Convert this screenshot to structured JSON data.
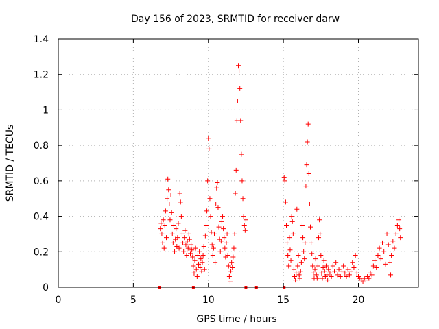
{
  "chart_data": {
    "type": "scatter",
    "title": "Day 156 of 2023, SRMTID for receiver darw",
    "xlabel": "GPS time / hours",
    "ylabel": "SRMTID / TECUs",
    "xlim": [
      0,
      24
    ],
    "ylim": [
      0,
      1.4
    ],
    "xticks": [
      0,
      5,
      10,
      15,
      20
    ],
    "yticks": [
      0,
      0.2,
      0.4,
      0.6,
      0.8,
      1,
      1.2,
      1.4
    ],
    "ytick_labels": [
      "0",
      "0.2",
      "0.4",
      "0.6",
      "0.8",
      "1",
      "1.2",
      "1.4"
    ],
    "grid": true,
    "marker": "+",
    "color": "#ff0000",
    "series": [
      {
        "name": "SRMTID",
        "points": [
          [
            6.8,
            0.33
          ],
          [
            6.85,
            0.36
          ],
          [
            6.9,
            0.3
          ],
          [
            6.95,
            0.25
          ],
          [
            7.0,
            0.38
          ],
          [
            7.05,
            0.22
          ],
          [
            7.1,
            0.35
          ],
          [
            7.15,
            0.43
          ],
          [
            7.2,
            0.28
          ],
          [
            7.25,
            0.5
          ],
          [
            7.3,
            0.61
          ],
          [
            7.35,
            0.55
          ],
          [
            7.4,
            0.47
          ],
          [
            7.45,
            0.38
          ],
          [
            7.5,
            0.52
          ],
          [
            7.55,
            0.42
          ],
          [
            7.6,
            0.3
          ],
          [
            7.65,
            0.25
          ],
          [
            7.7,
            0.35
          ],
          [
            7.75,
            0.2
          ],
          [
            7.8,
            0.27
          ],
          [
            7.85,
            0.33
          ],
          [
            7.9,
            0.23
          ],
          [
            7.95,
            0.28
          ],
          [
            8.0,
            0.36
          ],
          [
            8.05,
            0.22
          ],
          [
            8.1,
            0.53
          ],
          [
            8.15,
            0.48
          ],
          [
            8.2,
            0.4
          ],
          [
            8.25,
            0.3
          ],
          [
            8.3,
            0.25
          ],
          [
            8.35,
            0.2
          ],
          [
            8.4,
            0.28
          ],
          [
            8.45,
            0.32
          ],
          [
            8.5,
            0.24
          ],
          [
            8.55,
            0.18
          ],
          [
            8.6,
            0.26
          ],
          [
            8.65,
            0.22
          ],
          [
            8.7,
            0.3
          ],
          [
            8.75,
            0.27
          ],
          [
            8.8,
            0.19
          ],
          [
            8.85,
            0.24
          ],
          [
            8.9,
            0.21
          ],
          [
            8.95,
            0.17
          ],
          [
            9.0,
            0.12
          ],
          [
            9.05,
            0.08
          ],
          [
            9.1,
            0.15
          ],
          [
            9.15,
            0.22
          ],
          [
            9.2,
            0.1
          ],
          [
            9.25,
            0.06
          ],
          [
            9.3,
            0.18
          ],
          [
            9.35,
            0.13
          ],
          [
            9.4,
            0.2
          ],
          [
            9.45,
            0.11
          ],
          [
            9.5,
            0.16
          ],
          [
            9.55,
            0.09
          ],
          [
            9.6,
            0.14
          ],
          [
            9.65,
            0.18
          ],
          [
            9.7,
            0.23
          ],
          [
            9.75,
            0.1
          ],
          [
            9.8,
            0.29
          ],
          [
            9.85,
            0.35
          ],
          [
            9.9,
            0.43
          ],
          [
            9.95,
            0.6
          ],
          [
            10.0,
            0.84
          ],
          [
            10.05,
            0.78
          ],
          [
            10.1,
            0.5
          ],
          [
            10.15,
            0.4
          ],
          [
            10.2,
            0.31
          ],
          [
            10.25,
            0.24
          ],
          [
            10.3,
            0.18
          ],
          [
            10.35,
            0.22
          ],
          [
            10.4,
            0.3
          ],
          [
            10.45,
            0.14
          ],
          [
            10.5,
            0.47
          ],
          [
            10.55,
            0.56
          ],
          [
            10.6,
            0.59
          ],
          [
            10.65,
            0.45
          ],
          [
            10.7,
            0.34
          ],
          [
            10.75,
            0.27
          ],
          [
            10.8,
            0.2
          ],
          [
            10.85,
            0.26
          ],
          [
            10.9,
            0.37
          ],
          [
            10.95,
            0.4
          ],
          [
            11.0,
            0.33
          ],
          [
            11.05,
            0.28
          ],
          [
            11.1,
            0.22
          ],
          [
            11.15,
            0.17
          ],
          [
            11.2,
            0.25
          ],
          [
            11.25,
            0.3
          ],
          [
            11.3,
            0.18
          ],
          [
            11.35,
            0.12
          ],
          [
            11.4,
            0.06
          ],
          [
            11.45,
            0.03
          ],
          [
            11.5,
            0.09
          ],
          [
            11.55,
            0.14
          ],
          [
            11.6,
            0.11
          ],
          [
            11.65,
            0.17
          ],
          [
            11.7,
            0.22
          ],
          [
            11.75,
            0.3
          ],
          [
            11.8,
            0.53
          ],
          [
            11.85,
            0.66
          ],
          [
            11.9,
            0.94
          ],
          [
            11.95,
            1.05
          ],
          [
            12.0,
            1.25
          ],
          [
            12.05,
            1.22
          ],
          [
            12.1,
            1.12
          ],
          [
            12.15,
            0.94
          ],
          [
            12.2,
            0.75
          ],
          [
            12.25,
            0.6
          ],
          [
            12.3,
            0.5
          ],
          [
            12.35,
            0.4
          ],
          [
            12.4,
            0.35
          ],
          [
            12.45,
            0.32
          ],
          [
            12.5,
            0.38
          ],
          [
            15.05,
            0.62
          ],
          [
            15.1,
            0.6
          ],
          [
            15.15,
            0.48
          ],
          [
            15.2,
            0.35
          ],
          [
            15.25,
            0.25
          ],
          [
            15.3,
            0.18
          ],
          [
            15.35,
            0.12
          ],
          [
            15.4,
            0.28
          ],
          [
            15.45,
            0.21
          ],
          [
            15.5,
            0.15
          ],
          [
            15.55,
            0.4
          ],
          [
            15.6,
            0.37
          ],
          [
            15.65,
            0.3
          ],
          [
            15.7,
            0.1
          ],
          [
            15.75,
            0.06
          ],
          [
            15.8,
            0.04
          ],
          [
            15.85,
            0.08
          ],
          [
            15.9,
            0.44
          ],
          [
            15.95,
            0.12
          ],
          [
            16.0,
            0.18
          ],
          [
            16.05,
            0.07
          ],
          [
            16.1,
            0.05
          ],
          [
            16.15,
            0.09
          ],
          [
            16.2,
            0.14
          ],
          [
            16.25,
            0.35
          ],
          [
            16.3,
            0.28
          ],
          [
            16.35,
            0.2
          ],
          [
            16.4,
            0.16
          ],
          [
            16.45,
            0.25
          ],
          [
            16.5,
            0.57
          ],
          [
            16.55,
            0.69
          ],
          [
            16.6,
            0.82
          ],
          [
            16.65,
            0.92
          ],
          [
            16.7,
            0.64
          ],
          [
            16.75,
            0.47
          ],
          [
            16.8,
            0.34
          ],
          [
            16.85,
            0.25
          ],
          [
            16.9,
            0.19
          ],
          [
            16.95,
            0.12
          ],
          [
            17.0,
            0.08
          ],
          [
            17.05,
            0.05
          ],
          [
            17.1,
            0.1
          ],
          [
            17.15,
            0.16
          ],
          [
            17.2,
            0.07
          ],
          [
            17.25,
            0.05
          ],
          [
            17.3,
            0.12
          ],
          [
            17.35,
            0.28
          ],
          [
            17.4,
            0.38
          ],
          [
            17.45,
            0.3
          ],
          [
            17.5,
            0.18
          ],
          [
            17.55,
            0.08
          ],
          [
            17.6,
            0.05
          ],
          [
            17.65,
            0.11
          ],
          [
            17.7,
            0.15
          ],
          [
            17.75,
            0.09
          ],
          [
            17.8,
            0.06
          ],
          [
            17.85,
            0.12
          ],
          [
            17.9,
            0.07
          ],
          [
            17.95,
            0.04
          ],
          [
            18.0,
            0.1
          ],
          [
            18.1,
            0.08
          ],
          [
            18.2,
            0.06
          ],
          [
            18.3,
            0.12
          ],
          [
            18.4,
            0.09
          ],
          [
            18.5,
            0.14
          ],
          [
            18.6,
            0.07
          ],
          [
            18.7,
            0.1
          ],
          [
            18.8,
            0.06
          ],
          [
            18.9,
            0.09
          ],
          [
            19.0,
            0.12
          ],
          [
            19.1,
            0.08
          ],
          [
            19.2,
            0.06
          ],
          [
            19.3,
            0.1
          ],
          [
            19.4,
            0.07
          ],
          [
            19.5,
            0.09
          ],
          [
            19.6,
            0.14
          ],
          [
            19.7,
            0.11
          ],
          [
            19.8,
            0.18
          ],
          [
            19.9,
            0.08
          ],
          [
            20.0,
            0.06
          ],
          [
            20.1,
            0.05
          ],
          [
            20.2,
            0.04
          ],
          [
            20.3,
            0.03
          ],
          [
            20.4,
            0.05
          ],
          [
            20.5,
            0.04
          ],
          [
            20.6,
            0.06
          ],
          [
            20.7,
            0.05
          ],
          [
            20.8,
            0.08
          ],
          [
            20.9,
            0.07
          ],
          [
            21.0,
            0.12
          ],
          [
            21.1,
            0.15
          ],
          [
            21.2,
            0.11
          ],
          [
            21.3,
            0.18
          ],
          [
            21.4,
            0.22
          ],
          [
            21.5,
            0.16
          ],
          [
            21.6,
            0.25
          ],
          [
            21.7,
            0.2
          ],
          [
            21.8,
            0.13
          ],
          [
            21.9,
            0.3
          ],
          [
            22.0,
            0.24
          ],
          [
            22.1,
            0.14
          ],
          [
            22.15,
            0.07
          ],
          [
            22.2,
            0.18
          ],
          [
            22.3,
            0.26
          ],
          [
            22.4,
            0.22
          ],
          [
            22.5,
            0.3
          ],
          [
            22.6,
            0.35
          ],
          [
            22.7,
            0.38
          ],
          [
            22.75,
            0.33
          ],
          [
            22.8,
            0.28
          ]
        ]
      }
    ],
    "baseline_markers": [
      6.75,
      9.0,
      12.5,
      13.2,
      15.05
    ]
  }
}
